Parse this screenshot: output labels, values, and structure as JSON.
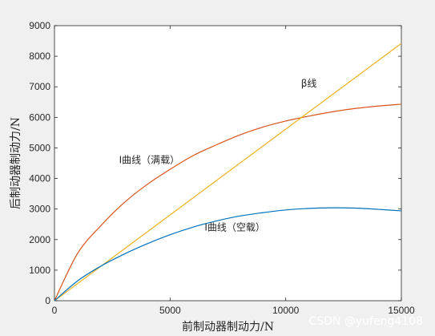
{
  "chart_data": {
    "type": "line",
    "xlabel": "前制动器制动力/N",
    "ylabel": "后制动器制动力/N",
    "xlim": [
      0,
      15000
    ],
    "ylim": [
      0,
      9000
    ],
    "xticks": [
      0,
      5000,
      10000,
      15000
    ],
    "yticks": [
      0,
      1000,
      2000,
      3000,
      4000,
      5000,
      6000,
      7000,
      8000,
      9000
    ],
    "grid": false,
    "series": [
      {
        "name": "I曲线（满载）",
        "color": "#d95319",
        "x": [
          0,
          1000,
          2000,
          3000,
          4000,
          5000,
          6000,
          7000,
          8000,
          9000,
          10000,
          11000,
          12000,
          13000,
          14000,
          15000
        ],
        "y": [
          0,
          1550,
          2450,
          3200,
          3800,
          4300,
          4750,
          5100,
          5420,
          5680,
          5880,
          6040,
          6180,
          6290,
          6370,
          6430
        ]
      },
      {
        "name": "β线",
        "color": "#edb120",
        "x": [
          0,
          15000
        ],
        "y": [
          0,
          8420
        ]
      },
      {
        "name": "I曲线（空载）",
        "color": "#0072bd",
        "x": [
          0,
          1000,
          2000,
          3000,
          4000,
          5000,
          6000,
          7000,
          8000,
          9000,
          10000,
          11000,
          12000,
          13000,
          14000,
          15000
        ],
        "y": [
          0,
          650,
          1130,
          1520,
          1860,
          2160,
          2410,
          2610,
          2770,
          2880,
          2970,
          3020,
          3040,
          3030,
          2990,
          2940
        ]
      }
    ],
    "annotations": [
      {
        "text": "β线",
        "x": 11000,
        "y": 7000
      },
      {
        "text": "I曲线（满载）",
        "x": 4100,
        "y": 4500
      },
      {
        "text": "I曲线（空载）",
        "x": 7800,
        "y": 2300
      }
    ]
  },
  "watermark": "CSDN @yufeng4108"
}
